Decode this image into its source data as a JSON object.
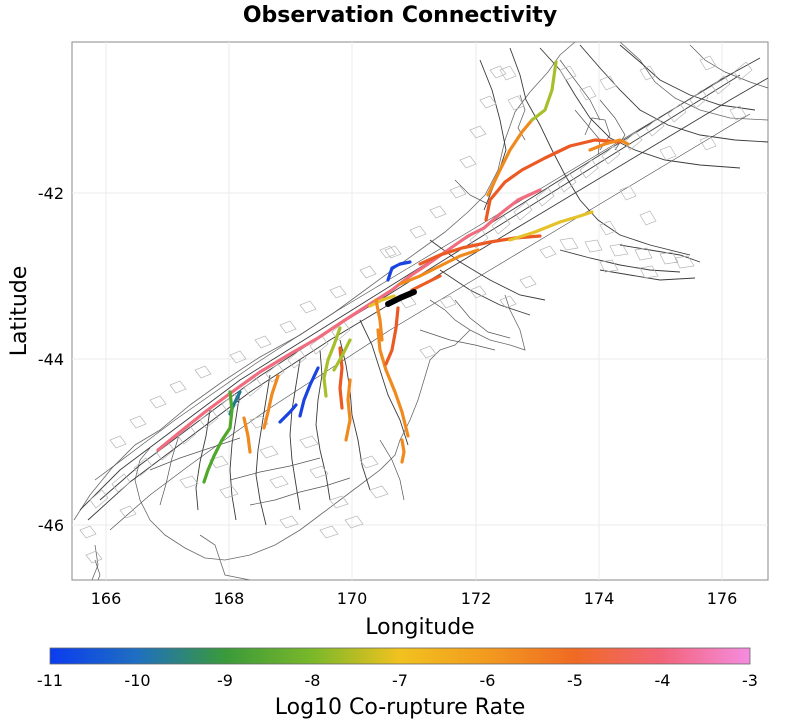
{
  "title": "Observation Connectivity",
  "axes": {
    "xlabel": "Longitude",
    "ylabel": "Latitude",
    "xticks": [
      "166",
      "168",
      "170",
      "172",
      "174",
      "176"
    ],
    "yticks": [
      "-42",
      "-44",
      "-46"
    ]
  },
  "colorbar": {
    "label": "Log10 Co-rupture Rate",
    "ticks": [
      "-11",
      "-10",
      "-9",
      "-8",
      "-7",
      "-6",
      "-5",
      "-4",
      "-3"
    ],
    "stops": [
      "#0a3cf0",
      "#1f6fc0",
      "#3a9a3a",
      "#7ab82a",
      "#f2c21f",
      "#f29a1f",
      "#ef6a24",
      "#f2647a",
      "#f58ce0"
    ]
  },
  "colors": {
    "blue": "#1a44e0",
    "teal": "#1f7a9a",
    "green": "#4fa82a",
    "yellowgreen": "#a6c02a",
    "yellow": "#e6c22a",
    "orange": "#f08a1f",
    "redorange": "#ec5a24",
    "pink": "#f06c7e",
    "observed": "#000000"
  }
}
